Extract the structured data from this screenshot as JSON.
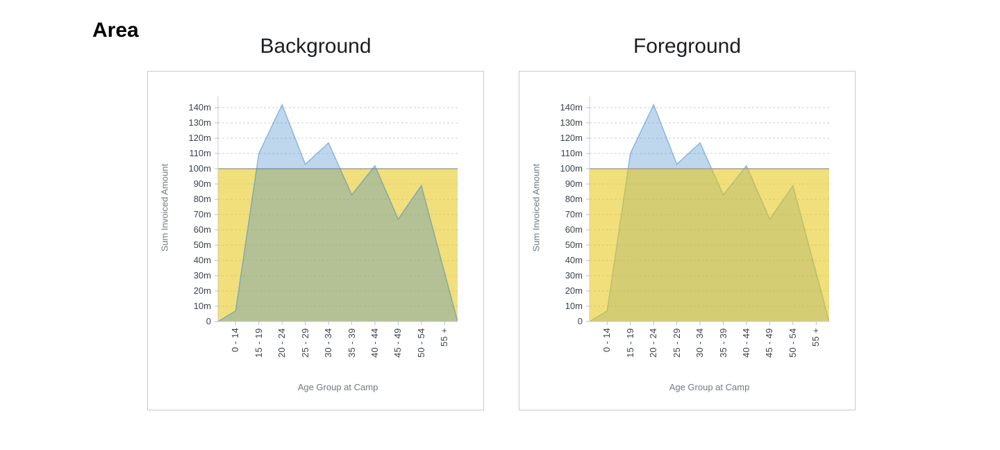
{
  "page": {
    "title": "Area"
  },
  "chart_data": {
    "type": "area",
    "title": "Area",
    "categories": [
      "0 - 14",
      "15 - 19",
      "20 - 24",
      "25 - 29",
      "30 - 34",
      "35 - 39",
      "40 - 44",
      "45 - 49",
      "50 - 54",
      "55 +"
    ],
    "series": [
      {
        "name": "Sum Invoiced Amount",
        "values_millions": [
          7,
          110,
          142,
          103,
          117,
          83,
          102,
          67,
          89,
          0
        ]
      }
    ],
    "band": {
      "from_millions": 0,
      "to_millions": 100,
      "description": "yellow value-axis band from 0 to 100m with solid top line"
    },
    "xlabel": "Age Group at Camp",
    "ylabel": "Sum Invoiced Amount",
    "ylim_millions": [
      0,
      147
    ],
    "yticks": [
      "0",
      "10m",
      "20m",
      "30m",
      "40m",
      "50m",
      "60m",
      "70m",
      "80m",
      "90m",
      "100m",
      "110m",
      "120m",
      "130m",
      "140m"
    ],
    "grid": "horizontal-dashed",
    "legend": "none",
    "charts": [
      {
        "title": "Background",
        "band_position": "behind series"
      },
      {
        "title": "Foreground",
        "band_position": "in front of series"
      }
    ],
    "colors": {
      "area_fill": "#3a87c8",
      "area_fill_opacity": 0.33,
      "area_line": "#3a87c8",
      "area_line_opacity": 0.5,
      "band_fill": "#e6c40e",
      "band_fill_opacity": 0.55,
      "band_line": "#a09f97",
      "grid": "#cfcfcf",
      "axis": "#c9cdd5",
      "tick": "#b8bec8",
      "tick_text": "#3a4350",
      "axis_title_text": "#6f7a86",
      "title_text": "#1b1e21"
    }
  }
}
